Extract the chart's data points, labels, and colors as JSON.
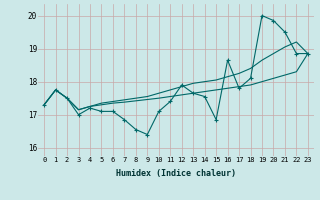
{
  "xlabel": "Humidex (Indice chaleur)",
  "bg_color": "#cce8e8",
  "grid_color": "#c8a8a8",
  "line_color": "#006868",
  "xlim": [
    -0.5,
    23.5
  ],
  "ylim": [
    15.75,
    20.35
  ],
  "yticks": [
    16,
    17,
    18,
    19,
    20
  ],
  "xticks": [
    0,
    1,
    2,
    3,
    4,
    5,
    6,
    7,
    8,
    9,
    10,
    11,
    12,
    13,
    14,
    15,
    16,
    17,
    18,
    19,
    20,
    21,
    22,
    23
  ],
  "jagged": [
    17.3,
    17.75,
    17.5,
    17.0,
    17.2,
    17.1,
    17.1,
    16.85,
    16.55,
    16.4,
    17.1,
    17.4,
    17.9,
    17.65,
    17.55,
    16.85,
    18.65,
    17.8,
    18.1,
    20.0,
    19.85,
    19.5,
    18.85,
    18.85
  ],
  "trend_upper": [
    17.3,
    17.75,
    17.5,
    17.15,
    17.25,
    17.35,
    17.4,
    17.45,
    17.5,
    17.55,
    17.65,
    17.75,
    17.85,
    17.95,
    18.0,
    18.05,
    18.15,
    18.25,
    18.4,
    18.65,
    18.85,
    19.05,
    19.2,
    18.85
  ],
  "trend_lower": [
    17.3,
    17.75,
    17.5,
    17.15,
    17.25,
    17.3,
    17.35,
    17.38,
    17.42,
    17.46,
    17.5,
    17.55,
    17.6,
    17.65,
    17.7,
    17.75,
    17.8,
    17.85,
    17.9,
    18.0,
    18.1,
    18.2,
    18.3,
    18.85
  ]
}
